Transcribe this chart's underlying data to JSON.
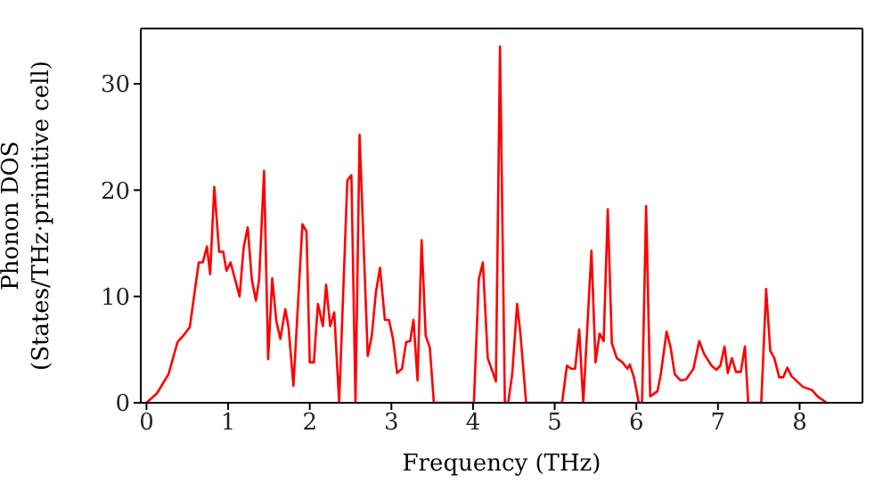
{
  "chart_data": {
    "type": "line",
    "xlabel": "Frequency (THz)",
    "ylabel": "Phonon DOS\n(States/THz·primitive cell)",
    "xlim": [
      -0.07,
      8.77
    ],
    "ylim": [
      0,
      35.2
    ],
    "xticks": [
      0,
      1,
      2,
      3,
      4,
      5,
      6,
      7,
      8
    ],
    "yticks": [
      0,
      10,
      20,
      30
    ],
    "marker": "none",
    "line_style": "solid",
    "x": [
      0,
      0.13,
      0.27,
      0.38,
      0.45,
      0.53,
      0.64,
      0.69,
      0.74,
      0.78,
      0.83,
      0.89,
      0.94,
      0.98,
      1.03,
      1.14,
      1.19,
      1.24,
      1.29,
      1.34,
      1.38,
      1.44,
      1.49,
      1.54,
      1.59,
      1.64,
      1.7,
      1.74,
      1.8,
      1.91,
      1.96,
      2.0,
      2.05,
      2.1,
      2.16,
      2.2,
      2.25,
      2.3,
      2.36,
      2.46,
      2.51,
      2.56,
      2.61,
      2.71,
      2.76,
      2.81,
      2.86,
      2.92,
      2.97,
      3.02,
      3.07,
      3.13,
      3.18,
      3.23,
      3.27,
      3.32,
      3.37,
      3.42,
      3.47,
      3.52,
      4.01,
      4.07,
      4.12,
      4.18,
      4.28,
      4.33,
      4.39,
      4.43,
      4.48,
      4.54,
      4.58,
      4.65,
      5.09,
      5.15,
      5.2,
      5.25,
      5.3,
      5.35,
      5.45,
      5.5,
      5.55,
      5.6,
      5.65,
      5.7,
      5.76,
      5.83,
      5.89,
      5.92,
      5.97,
      6.03,
      6.07,
      6.12,
      6.17,
      6.26,
      6.3,
      6.37,
      6.42,
      6.47,
      6.54,
      6.61,
      6.7,
      6.77,
      6.83,
      6.92,
      6.98,
      7.03,
      7.08,
      7.12,
      7.17,
      7.22,
      7.28,
      7.33,
      7.37,
      7.53,
      7.59,
      7.64,
      7.69,
      7.75,
      7.8,
      7.85,
      7.9,
      7.97,
      8.04,
      8.15,
      8.22,
      8.33
    ],
    "series": [
      {
        "color": "#ff0000",
        "values": [
          0,
          0.9,
          2.7,
          5.7,
          6.3,
          7.1,
          13.2,
          13.2,
          14.7,
          12.1,
          20.3,
          14.2,
          14.2,
          12.4,
          13.2,
          10,
          14.6,
          16.5,
          11.6,
          9.6,
          11.6,
          21.8,
          4.1,
          11.7,
          7.7,
          6,
          8.8,
          7.1,
          1.6,
          16.8,
          16.1,
          3.8,
          3.8,
          9.3,
          7.2,
          11.1,
          7.2,
          8.5,
          0,
          20.9,
          21.4,
          0,
          25.2,
          4.4,
          6.3,
          10.4,
          12.7,
          7.8,
          7.8,
          6,
          2.8,
          3.2,
          5.7,
          5.8,
          7.8,
          2.1,
          15.3,
          6.3,
          5.2,
          0,
          0,
          11.6,
          13.2,
          4.2,
          2,
          33.5,
          0,
          0,
          2.7,
          9.3,
          6.5,
          0,
          0,
          3.5,
          3.2,
          3.2,
          6.9,
          0,
          14.3,
          3.8,
          6.5,
          5.8,
          18.2,
          5.6,
          4.2,
          3.8,
          3.2,
          3.6,
          2.4,
          0,
          0,
          18.5,
          0.6,
          1.1,
          2.7,
          6.7,
          5.2,
          2.7,
          2.1,
          2.2,
          3.2,
          5.8,
          4.6,
          3.5,
          3.1,
          3.5,
          5.3,
          2.8,
          4.2,
          2.9,
          2.9,
          5.3,
          0,
          0,
          10.7,
          4.9,
          4.2,
          2.4,
          2.4,
          3.3,
          2.5,
          2,
          1.5,
          1.2,
          0.6,
          0
        ]
      }
    ]
  }
}
